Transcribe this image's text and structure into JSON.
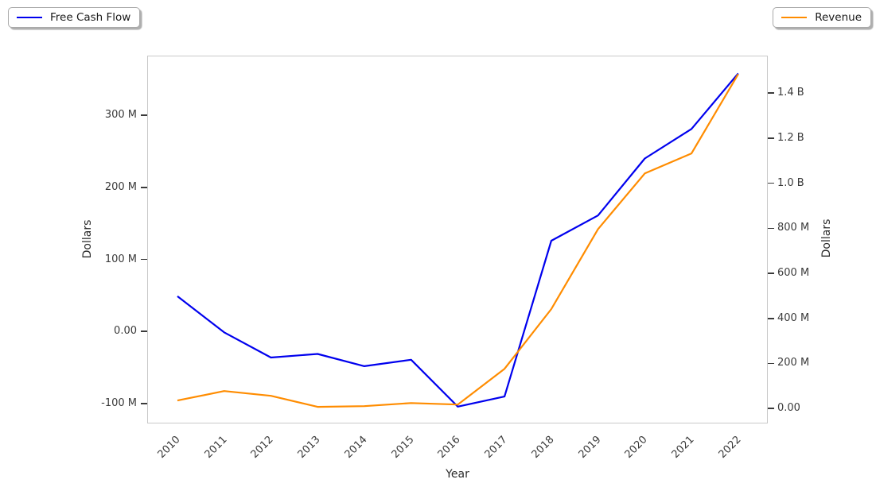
{
  "legend_left": {
    "label": "Free Cash Flow"
  },
  "legend_right": {
    "label": "Revenue"
  },
  "chart_data": {
    "type": "line",
    "title": "",
    "xlabel": "Year",
    "ylabel_left": "Dollars",
    "ylabel_right": "Dollars",
    "grid": false,
    "legend_position": "outside-top-left and outside-top-right",
    "x": [
      2010,
      2011,
      2012,
      2013,
      2014,
      2015,
      2016,
      2017,
      2018,
      2019,
      2020,
      2021,
      2022
    ],
    "x_tick_labels": [
      "2010",
      "2011",
      "2012",
      "2013",
      "2014",
      "2015",
      "2016",
      "2017",
      "2018",
      "2019",
      "2020",
      "2021",
      "2022"
    ],
    "x_range": [
      2009.37,
      2022.65
    ],
    "series": [
      {
        "name": "Free Cash Flow",
        "axis": "left",
        "color": "#0000ee",
        "units": "millions of dollars",
        "values": [
          50,
          0,
          -35,
          -30,
          -47,
          -38,
          -103,
          -89,
          127,
          162,
          241,
          282,
          359
        ]
      },
      {
        "name": "Revenue",
        "axis": "right",
        "color": "#ff8c00",
        "units": "millions of dollars",
        "values": [
          39,
          81,
          60,
          11,
          14,
          28,
          21,
          180,
          445,
          800,
          1047,
          1136,
          1488
        ]
      }
    ],
    "left_axis": {
      "range_millions": [
        -127.5,
        382.6
      ],
      "ticks": [
        {
          "label": "300 M",
          "value": 300
        },
        {
          "label": "200 M",
          "value": 200
        },
        {
          "label": "100 M",
          "value": 100
        },
        {
          "label": "0.00",
          "value": 0
        },
        {
          "label": "-100 M",
          "value": -100
        }
      ]
    },
    "right_axis": {
      "range_millions": [
        -66.3,
        1566.7
      ],
      "ticks": [
        {
          "label": "1.4 B",
          "value": 1400
        },
        {
          "label": "1.2 B",
          "value": 1200
        },
        {
          "label": "1.0 B",
          "value": 1000
        },
        {
          "label": "800 M",
          "value": 800
        },
        {
          "label": "600 M",
          "value": 600
        },
        {
          "label": "400 M",
          "value": 400
        },
        {
          "label": "200 M",
          "value": 200
        },
        {
          "label": "0.00",
          "value": 0
        }
      ]
    }
  }
}
